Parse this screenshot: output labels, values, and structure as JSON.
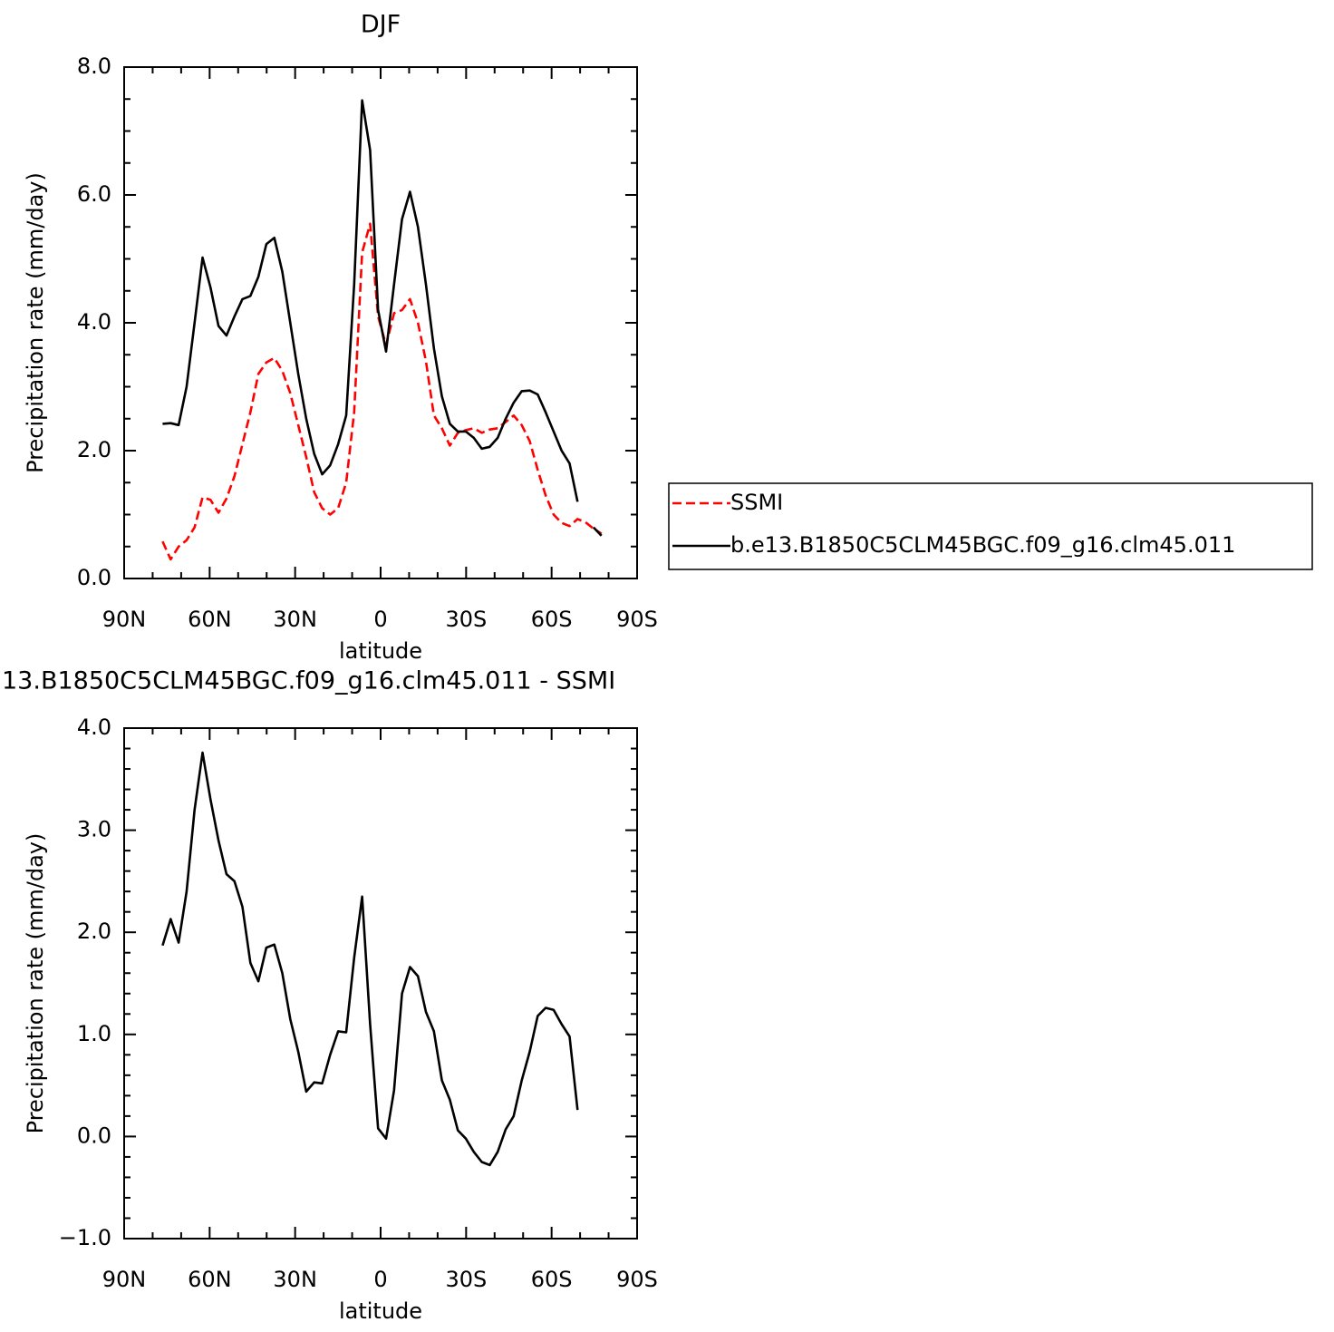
{
  "chart_data": [
    {
      "type": "line",
      "title": "DJF",
      "xlabel": "latitude",
      "ylabel": "Precipitation rate (mm/day)",
      "x": [
        76.5,
        73.7,
        70.9,
        68.1,
        65.3,
        62.5,
        59.7,
        56.9,
        54.1,
        51.3,
        48.5,
        45.7,
        42.9,
        40.1,
        37.3,
        34.5,
        31.7,
        28.9,
        26.1,
        23.3,
        20.5,
        17.7,
        14.9,
        12.1,
        9.3,
        6.5,
        3.7,
        0.9,
        -1.9,
        -4.7,
        -7.5,
        -10.3,
        -13.1,
        -15.9,
        -18.7,
        -21.5,
        -24.3,
        -27.1,
        -29.9,
        -32.7,
        -35.5,
        -38.3,
        -41.1,
        -43.9,
        -46.7,
        -49.5,
        -52.3,
        -55.1,
        -57.9,
        -60.7,
        -63.5,
        -66.3,
        -69.1,
        -71.9,
        -74.7,
        -77.5
      ],
      "series": [
        {
          "name": "SSMI",
          "color": "#ff0000",
          "dash": true,
          "values": [
            0.58,
            0.3,
            0.5,
            0.6,
            0.8,
            1.27,
            1.23,
            1.03,
            1.25,
            1.6,
            2.1,
            2.6,
            3.2,
            3.38,
            3.45,
            3.25,
            2.9,
            2.4,
            1.9,
            1.35,
            1.1,
            1.0,
            1.1,
            1.5,
            2.6,
            5.1,
            5.55,
            4.1,
            3.65,
            4.15,
            4.2,
            4.37,
            4.0,
            3.4,
            2.55,
            2.35,
            2.08,
            2.28,
            2.32,
            2.35,
            2.28,
            2.33,
            2.35,
            2.45,
            2.55,
            2.4,
            2.15,
            1.7,
            1.3,
            1.0,
            0.87,
            0.82,
            0.93,
            0.88,
            0.78,
            0.7
          ]
        },
        {
          "name": "b.e13.B1850C5CLM45BGC.f09_g16.clm45.011",
          "color": "#000000",
          "dash": false,
          "values": [
            2.42,
            2.43,
            2.4,
            3.0,
            4.0,
            5.02,
            4.55,
            3.95,
            3.8,
            4.1,
            4.37,
            4.42,
            4.72,
            5.23,
            5.33,
            4.8,
            4.0,
            3.2,
            2.5,
            1.95,
            1.63,
            1.77,
            2.1,
            2.55,
            4.6,
            7.48,
            6.7,
            4.2,
            3.55,
            4.6,
            5.62,
            6.05,
            5.5,
            4.6,
            3.6,
            2.85,
            2.42,
            2.3,
            2.3,
            2.2,
            2.03,
            2.06,
            2.2,
            2.5,
            2.75,
            2.93,
            2.94,
            2.88,
            2.6,
            2.3,
            2.0,
            1.8,
            1.2,
            null,
            0.8,
            0.67
          ]
        }
      ],
      "xlim": [
        90,
        -90
      ],
      "xticks": [
        {
          "value": 90,
          "label": "90N"
        },
        {
          "value": 60,
          "label": "60N"
        },
        {
          "value": 30,
          "label": "30N"
        },
        0,
        {
          "value": -30,
          "label": "30S"
        },
        {
          "value": -60,
          "label": "60S"
        },
        {
          "value": -90,
          "label": "90S"
        }
      ],
      "xminorticks": [
        80,
        70,
        50,
        40,
        20,
        10,
        -10,
        -20,
        -40,
        -50,
        -70,
        -80
      ],
      "ylim": [
        0,
        8
      ],
      "yticks": [
        {
          "value": 0,
          "label": "0.0"
        },
        {
          "value": 2,
          "label": "2.0"
        },
        {
          "value": 4,
          "label": "4.0"
        },
        {
          "value": 6,
          "label": "6.0"
        },
        {
          "value": 8,
          "label": "8.0"
        }
      ],
      "yminorticks": [
        0.5,
        1,
        1.5,
        2.5,
        3,
        3.5,
        4.5,
        5,
        5.5,
        6.5,
        7,
        7.5
      ],
      "legend": "right"
    },
    {
      "type": "line",
      "title": "13.B1850C5CLM45BGC.f09_g16.clm45.011 - SSMI",
      "xlabel": "latitude",
      "ylabel": "Precipitation rate (mm/day)",
      "x": [
        76.5,
        73.7,
        70.9,
        68.1,
        65.3,
        62.5,
        59.7,
        56.9,
        54.1,
        51.3,
        48.5,
        45.7,
        42.9,
        40.1,
        37.3,
        34.5,
        31.7,
        28.9,
        26.1,
        23.3,
        20.5,
        17.7,
        14.9,
        12.1,
        9.3,
        6.5,
        3.7,
        0.9,
        -1.9,
        -4.7,
        -7.5,
        -10.3,
        -13.1,
        -15.9,
        -18.7,
        -21.5,
        -24.3,
        -27.1,
        -29.9,
        -32.7,
        -35.5,
        -38.3,
        -41.1,
        -43.9,
        -46.7,
        -49.5,
        -52.3,
        -55.1,
        -57.9,
        -60.7,
        -63.5,
        -66.3,
        -69.1
      ],
      "series": [
        {
          "color": "#000000",
          "dash": false,
          "values": [
            1.87,
            2.13,
            1.9,
            2.4,
            3.2,
            3.76,
            3.3,
            2.9,
            2.57,
            2.5,
            2.25,
            1.7,
            1.52,
            1.85,
            1.88,
            1.6,
            1.15,
            0.83,
            0.44,
            0.53,
            0.52,
            0.8,
            1.03,
            1.02,
            1.75,
            2.35,
            1.1,
            0.08,
            -0.02,
            0.45,
            1.4,
            1.66,
            1.57,
            1.22,
            1.03,
            0.55,
            0.36,
            0.06,
            -0.02,
            -0.15,
            -0.25,
            -0.28,
            -0.15,
            0.07,
            0.2,
            0.55,
            0.83,
            1.18,
            1.26,
            1.24,
            1.1,
            0.98,
            0.26
          ]
        }
      ],
      "xlim": [
        90,
        -90
      ],
      "xticks": [
        {
          "value": 90,
          "label": "90N"
        },
        {
          "value": 60,
          "label": "60N"
        },
        {
          "value": 30,
          "label": "30N"
        },
        0,
        {
          "value": -30,
          "label": "30S"
        },
        {
          "value": -60,
          "label": "60S"
        },
        {
          "value": -90,
          "label": "90S"
        }
      ],
      "xminorticks": [
        80,
        70,
        50,
        40,
        20,
        10,
        -10,
        -20,
        -40,
        -50,
        -70,
        -80
      ],
      "ylim": [
        -1,
        4
      ],
      "yticks": [
        {
          "value": -1,
          "label": "−1.0"
        },
        {
          "value": 0,
          "label": "0.0"
        },
        {
          "value": 1,
          "label": "1.0"
        },
        {
          "value": 2,
          "label": "2.0"
        },
        {
          "value": 3,
          "label": "3.0"
        },
        {
          "value": 4,
          "label": "4.0"
        }
      ],
      "yminorticks": [
        -0.8,
        -0.6,
        -0.4,
        -0.2,
        0.2,
        0.4,
        0.6,
        0.8,
        1.2,
        1.4,
        1.6,
        1.8,
        2.2,
        2.4,
        2.6,
        2.8,
        3.2,
        3.4,
        3.6,
        3.8
      ]
    }
  ]
}
